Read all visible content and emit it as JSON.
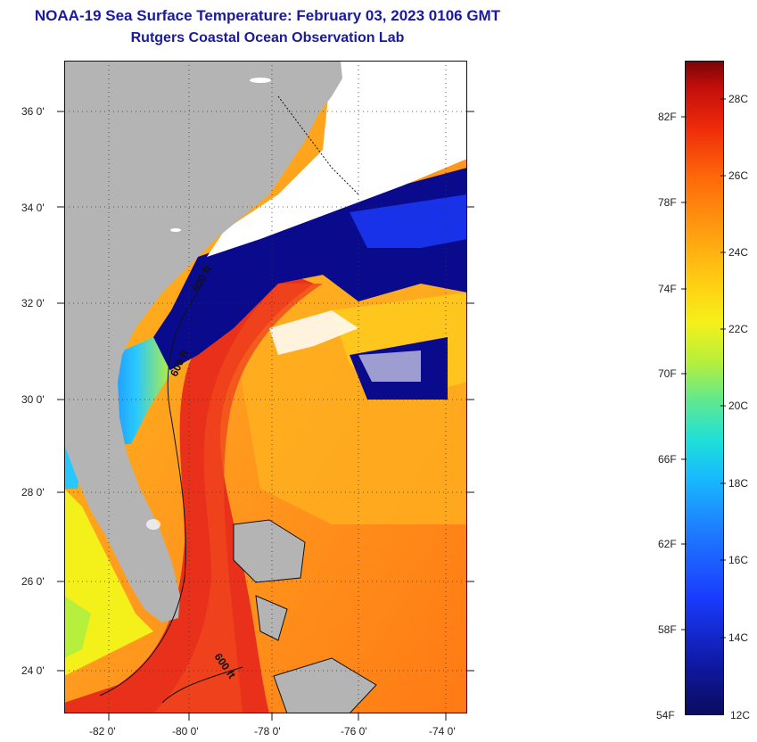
{
  "header": {
    "title": "NOAA-19 Sea Surface Temperature:  February 03, 2023 0106 GMT",
    "subtitle": "Rutgers Coastal Ocean Observation Lab"
  },
  "map": {
    "lat_labels": [
      "36 0'",
      "34 0'",
      "32 0'",
      "30 0'",
      "28 0'",
      "26 0'",
      "24 0'"
    ],
    "lon_labels": [
      "-82 0'",
      "-80 0'",
      "-78 0'",
      "-76 0'",
      "-74 0'"
    ],
    "contour_labels": [
      "600 ft",
      "600 ft",
      "600 ft"
    ],
    "colors": {
      "land": "#b4b4b4",
      "cloud": "#ffffff",
      "cold_water": "#0a0a8c",
      "gulf_stream": "#e8301a",
      "warm_water": "#ff9a1e"
    }
  },
  "colorbar": {
    "fahrenheit_labels": [
      "82F",
      "78F",
      "74F",
      "70F",
      "66F",
      "62F",
      "58F",
      "54F"
    ],
    "celsius_labels": [
      "28C",
      "26C",
      "24C",
      "22C",
      "20C",
      "18C",
      "16C",
      "14C",
      "12C"
    ],
    "range_f": [
      54,
      84
    ],
    "range_c": [
      12,
      29
    ]
  }
}
